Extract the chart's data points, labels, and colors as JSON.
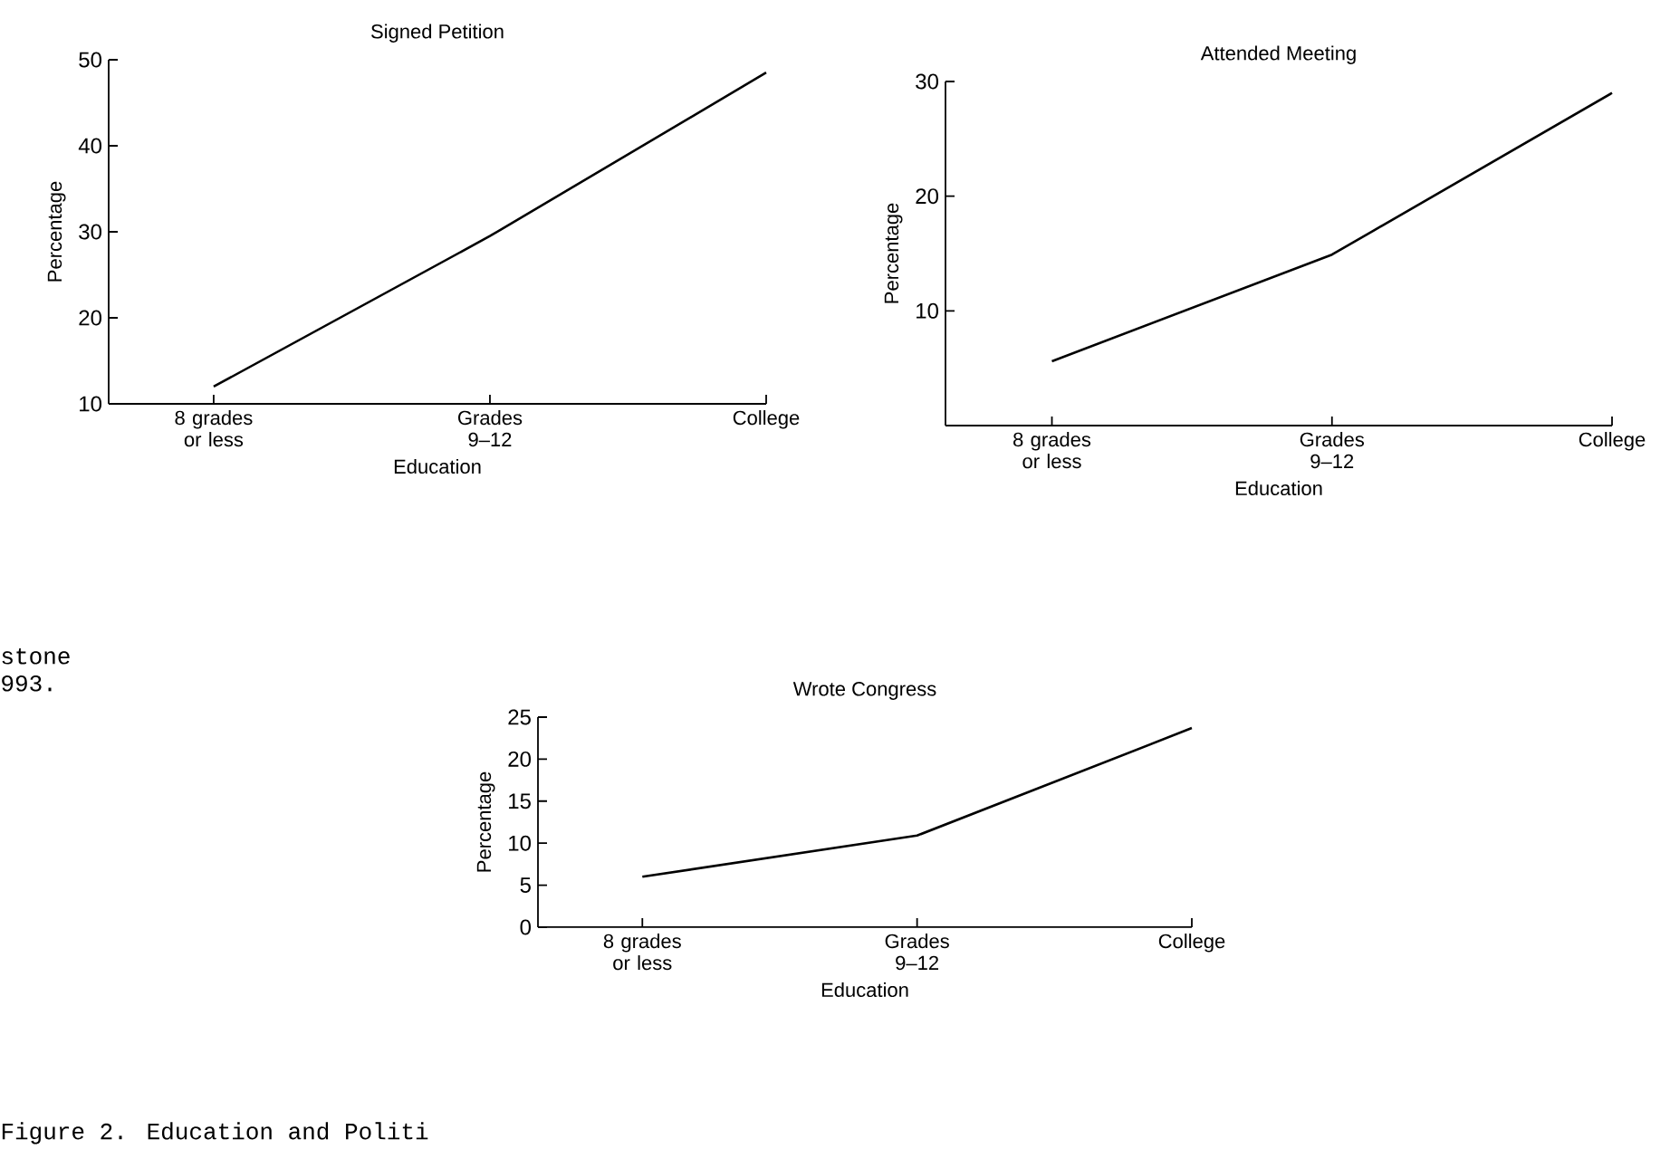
{
  "chart_data": [
    {
      "type": "line",
      "title": "Signed Petition",
      "xlabel": "Education",
      "ylabel": "Percentage",
      "categories": [
        "8 grades or less",
        "Grades 9–12",
        "College"
      ],
      "values": [
        12,
        29.5,
        48.5
      ],
      "color": "#000000",
      "ylim": [
        10,
        50
      ],
      "yticks": [
        10,
        20,
        30,
        40,
        50
      ],
      "grid": false,
      "marker": "none",
      "line_style": "solid"
    },
    {
      "type": "line",
      "title": "Attended Meeting",
      "xlabel": "Education",
      "ylabel": "Percentage",
      "categories": [
        "8 grades or less",
        "Grades 9–12",
        "College"
      ],
      "values": [
        5.6,
        14.9,
        29
      ],
      "color": "#000000",
      "ylim": [
        0,
        30
      ],
      "yticks": [
        10,
        20,
        30
      ],
      "grid": false,
      "marker": "none",
      "line_style": "solid"
    },
    {
      "type": "line",
      "title": "Wrote Congress",
      "xlabel": "Education",
      "ylabel": "Percentage",
      "categories": [
        "8 grades or less",
        "Grades 9–12",
        "College"
      ],
      "values": [
        6,
        10.9,
        23.7
      ],
      "color": "#000000",
      "ylim": [
        0,
        25
      ],
      "yticks": [
        0,
        5,
        10,
        15,
        20,
        25
      ],
      "grid": false,
      "marker": "none",
      "line_style": "solid",
      "annotations": [
        "stone",
        "993.",
        "Figure 2. Education and Politi"
      ]
    }
  ]
}
